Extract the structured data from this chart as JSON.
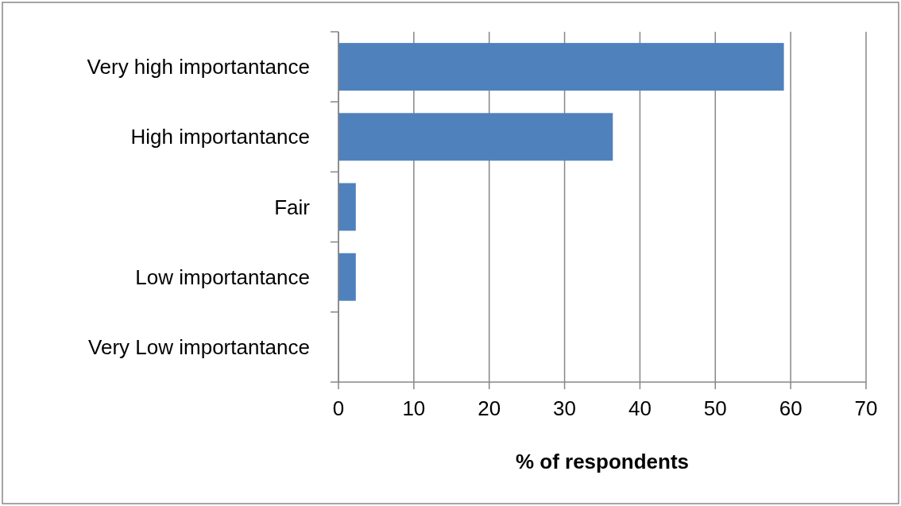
{
  "chart_data": {
    "type": "bar",
    "orientation": "horizontal",
    "categories": [
      "Very high importantance",
      "High importantance",
      "Fair",
      "Low importantance",
      "Very Low importantance"
    ],
    "values": [
      59.1,
      36.4,
      2.3,
      2.3,
      0
    ],
    "color": "#4f81bd",
    "xlabel": "% of respondents",
    "xlim": [
      0,
      70
    ],
    "xticks": [
      0,
      10,
      20,
      30,
      40,
      50,
      60,
      70
    ],
    "grid": "x"
  }
}
